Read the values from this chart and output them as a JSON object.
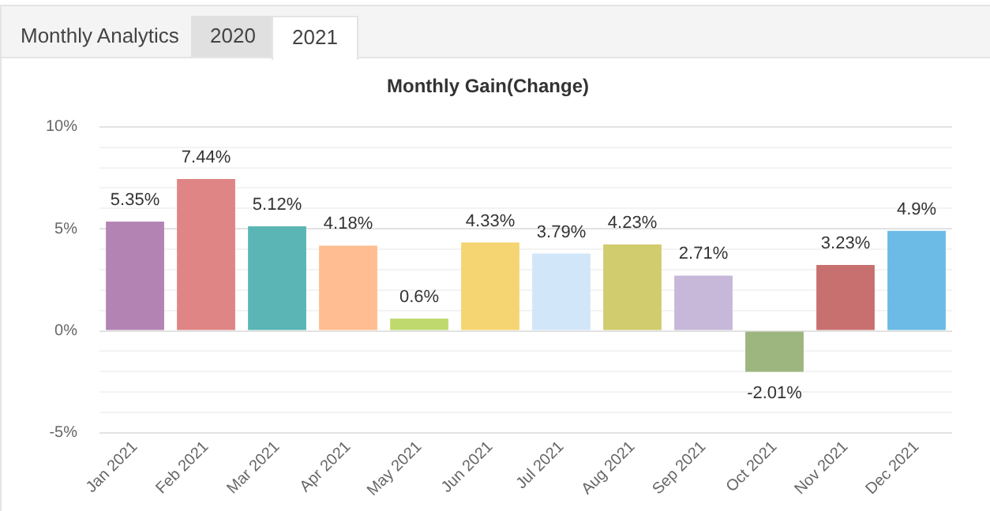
{
  "chart_data": {
    "type": "bar",
    "title": "Monthly Gain(Change)",
    "annotations": [
      "Monthly Analytics",
      "2020",
      "2021"
    ],
    "categories": [
      "Jan 2021",
      "Feb 2021",
      "Mar 2021",
      "Apr 2021",
      "May 2021",
      "Jun 2021",
      "Jul 2021",
      "Aug 2021",
      "Sep 2021",
      "Oct 2021",
      "Nov 2021",
      "Dec 2021"
    ],
    "values": [
      5.35,
      7.44,
      5.12,
      4.18,
      0.6,
      4.33,
      3.79,
      4.23,
      2.71,
      -2.01,
      3.23,
      4.9
    ],
    "value_labels": [
      "5.35%",
      "7.44%",
      "5.12%",
      "4.18%",
      "0.6%",
      "4.33%",
      "3.79%",
      "4.23%",
      "2.71%",
      "-2.01%",
      "3.23%",
      "4.9%"
    ],
    "colors": [
      "#b384b3",
      "#e08585",
      "#5bb5b5",
      "#ffbd91",
      "#bfd96f",
      "#f5d571",
      "#d1e6f9",
      "#d1cc6e",
      "#c7b8d9",
      "#9db57f",
      "#c87070",
      "#6bbbe6"
    ],
    "ylim": [
      -5,
      10
    ],
    "yticks": [
      {
        "value": -5,
        "label": "-5%"
      },
      {
        "value": -4,
        "label": null
      },
      {
        "value": -3,
        "label": null
      },
      {
        "value": -2,
        "label": null
      },
      {
        "value": -1,
        "label": null
      },
      {
        "value": 0,
        "label": "0%"
      },
      {
        "value": 1,
        "label": null
      },
      {
        "value": 2,
        "label": null
      },
      {
        "value": 3,
        "label": null
      },
      {
        "value": 4,
        "label": null
      },
      {
        "value": 5,
        "label": "5%"
      },
      {
        "value": 6,
        "label": null
      },
      {
        "value": 7,
        "label": null
      },
      {
        "value": 8,
        "label": null
      },
      {
        "value": 9,
        "label": null
      },
      {
        "value": 10,
        "label": "10%"
      }
    ],
    "grid": "y",
    "legend": false
  }
}
